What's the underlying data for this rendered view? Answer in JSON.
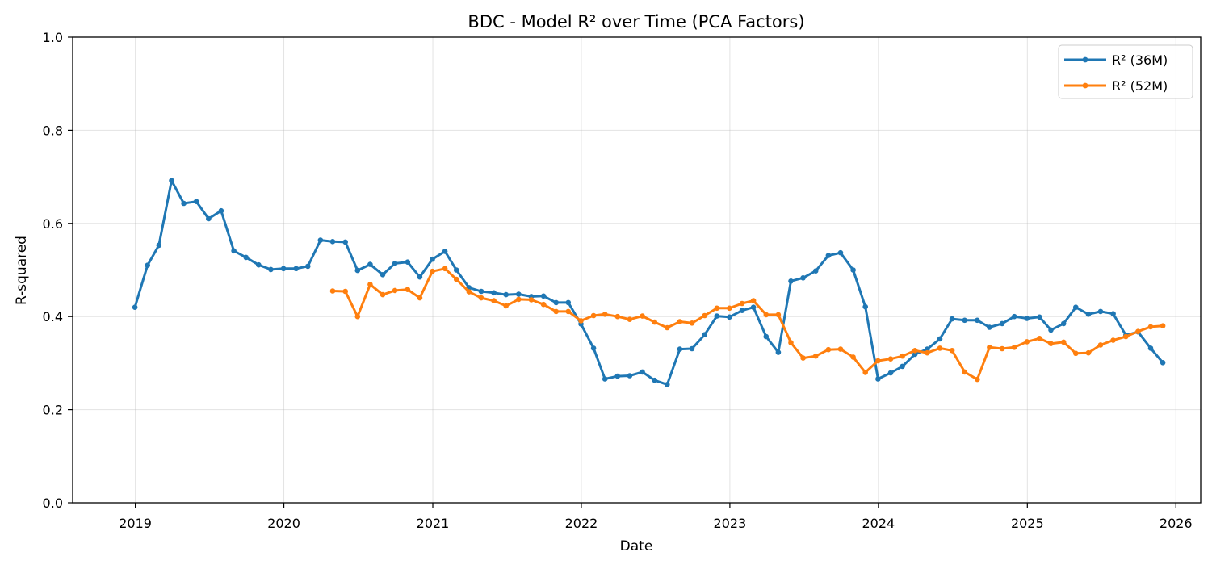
{
  "chart_data": {
    "type": "line",
    "title": "BDC - Model R² over Time (PCA Factors)",
    "xlabel": "Date",
    "ylabel": "R-squared",
    "ylim": [
      0,
      1
    ],
    "xlim": [
      "2018-07-31",
      "2026-03-03"
    ],
    "x_ticks": [
      "2019-01-01",
      "2020-01-01",
      "2021-01-01",
      "2022-01-01",
      "2023-01-01",
      "2024-01-01",
      "2025-01-01",
      "2026-01-01"
    ],
    "x_tick_labels": [
      "2019",
      "2020",
      "2021",
      "2022",
      "2023",
      "2024",
      "2025",
      "2026"
    ],
    "y_ticks": [
      0.0,
      0.2,
      0.4,
      0.6,
      0.8,
      1.0
    ],
    "y_tick_labels": [
      "0.0",
      "0.2",
      "0.4",
      "0.6",
      "0.8",
      "1.0"
    ],
    "grid": true,
    "legend_position": "top-right",
    "series": [
      {
        "name": "R² (36M)",
        "color": "#1f77b4",
        "start": "2018-12",
        "values": [
          0.42,
          0.51,
          0.553,
          0.692,
          0.643,
          0.647,
          0.61,
          0.627,
          0.541,
          0.527,
          0.511,
          0.501,
          0.503,
          0.503,
          0.508,
          0.564,
          0.561,
          0.56,
          0.499,
          0.512,
          0.49,
          0.514,
          0.517,
          0.485,
          0.523,
          0.54,
          0.5,
          0.462,
          0.454,
          0.451,
          0.447,
          0.448,
          0.443,
          0.444,
          0.43,
          0.43,
          0.384,
          0.332,
          0.266,
          0.272,
          0.273,
          0.281,
          0.263,
          0.254,
          0.33,
          0.331,
          0.361,
          0.401,
          0.399,
          0.413,
          0.42,
          0.357,
          0.323,
          0.476,
          0.483,
          0.498,
          0.531,
          0.537,
          0.5,
          0.421,
          0.266,
          0.279,
          0.293,
          0.319,
          0.33,
          0.352,
          0.395,
          0.392,
          0.392,
          0.377,
          0.385,
          0.4,
          0.396,
          0.399,
          0.371,
          0.385,
          0.42,
          0.405,
          0.411,
          0.406,
          0.36,
          0.367,
          0.332,
          0.301
        ]
      },
      {
        "name": "R² (52M)",
        "color": "#ff7f0e",
        "start": "2020-04",
        "values": [
          0.455,
          0.454,
          0.4,
          0.469,
          0.447,
          0.456,
          0.458,
          0.44,
          0.497,
          0.503,
          0.48,
          0.453,
          0.44,
          0.434,
          0.423,
          0.437,
          0.436,
          0.426,
          0.411,
          0.411,
          0.391,
          0.402,
          0.405,
          0.4,
          0.394,
          0.401,
          0.388,
          0.376,
          0.389,
          0.386,
          0.402,
          0.418,
          0.418,
          0.428,
          0.434,
          0.404,
          0.404,
          0.344,
          0.311,
          0.315,
          0.329,
          0.33,
          0.313,
          0.28,
          0.305,
          0.309,
          0.315,
          0.327,
          0.322,
          0.332,
          0.327,
          0.281,
          0.265,
          0.334,
          0.331,
          0.334,
          0.346,
          0.353,
          0.342,
          0.345,
          0.321,
          0.322,
          0.339,
          0.349,
          0.357,
          0.368,
          0.378,
          0.38
        ]
      }
    ]
  }
}
